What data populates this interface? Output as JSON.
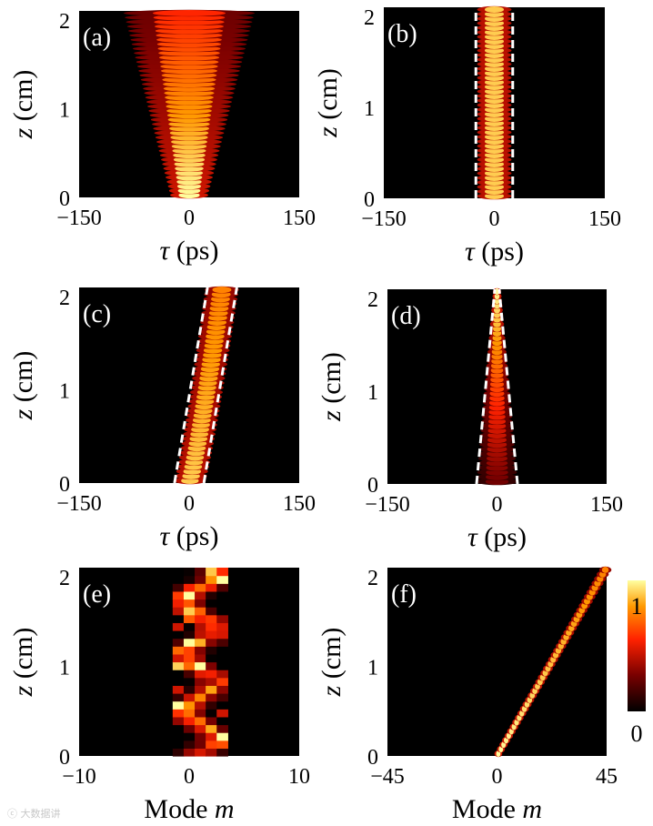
{
  "watermark": "ⓒ 大数据讲",
  "colorbar": {
    "ticks": [
      "1",
      "0"
    ],
    "colormap": [
      "#000000",
      "#7a0000",
      "#ff2200",
      "#ff9900",
      "#ffffa0"
    ]
  },
  "chart_data": [
    {
      "panel": "(a)",
      "type": "heatmap",
      "pattern": "broadening beam",
      "xlabel": "τ (ps)",
      "ylabel": "z (cm)",
      "xlim": [
        -150,
        150
      ],
      "ylim": [
        0,
        2.1
      ],
      "xticks": [
        -150,
        0,
        150
      ],
      "xticklabels": [
        "−150",
        "0",
        "150"
      ],
      "yticks": [
        0,
        1,
        2
      ],
      "yticklabels": [
        "0",
        "1",
        "2"
      ],
      "beam": {
        "center_start": 0,
        "center_end": 0,
        "width_start": 14,
        "width_end": 50,
        "peak_start": 1.0,
        "peak_end": 0.55
      }
    },
    {
      "panel": "(b)",
      "type": "heatmap",
      "pattern": "stationary soliton",
      "xlabel": "τ (ps)",
      "ylabel": "z (cm)",
      "xlim": [
        -150,
        150
      ],
      "ylim": [
        0,
        2.1
      ],
      "xticks": [
        -150,
        0,
        150
      ],
      "xticklabels": [
        "−150",
        "0",
        "150"
      ],
      "yticks": [
        0,
        1,
        2
      ],
      "yticklabels": [
        "0",
        "1",
        "2"
      ],
      "beam": {
        "center_start": 0,
        "center_end": 0,
        "width_start": 13,
        "width_end": 13,
        "peak_start": 0.9,
        "peak_end": 0.9
      },
      "dashed_lines": [
        {
          "x": [
            -25,
            -25
          ],
          "z": [
            0,
            2.1
          ]
        },
        {
          "x": [
            25,
            25
          ],
          "z": [
            0,
            2.1
          ]
        }
      ]
    },
    {
      "panel": "(c)",
      "type": "heatmap",
      "pattern": "drifting soliton",
      "xlabel": "τ (ps)",
      "ylabel": "z (cm)",
      "xlim": [
        -150,
        150
      ],
      "ylim": [
        0,
        2.1
      ],
      "xticks": [
        -150,
        0,
        150
      ],
      "xticklabels": [
        "−150",
        "0",
        "150"
      ],
      "yticks": [
        0,
        1,
        2
      ],
      "yticklabels": [
        "0",
        "1",
        "2"
      ],
      "beam": {
        "center_start": 0,
        "center_end": 45,
        "width_start": 12,
        "width_end": 13,
        "peak_start": 0.9,
        "peak_end": 0.75,
        "curve": 0.85
      },
      "dashed_lines": [
        {
          "x": [
            -20,
            25
          ],
          "z": [
            0,
            2.1
          ]
        },
        {
          "x": [
            20,
            65
          ],
          "z": [
            0,
            2.1
          ]
        }
      ]
    },
    {
      "panel": "(d)",
      "type": "heatmap",
      "pattern": "focusing beam",
      "xlabel": "τ (ps)",
      "ylabel": "z (cm)",
      "xlim": [
        -150,
        150
      ],
      "ylim": [
        0,
        2.1
      ],
      "xticks": [
        -150,
        0,
        150
      ],
      "xticklabels": [
        "−150",
        "0",
        "150"
      ],
      "yticks": [
        0,
        1,
        2
      ],
      "yticklabels": [
        "0",
        "1",
        "2"
      ],
      "beam": {
        "center_start": 0,
        "center_end": 0,
        "width_start": 16,
        "width_end": 3,
        "peak_start": 0.25,
        "peak_end": 1.0
      },
      "dashed_lines": [
        {
          "x": [
            -28,
            -3
          ],
          "z": [
            0,
            2.1
          ]
        },
        {
          "x": [
            28,
            3
          ],
          "z": [
            0,
            2.1
          ]
        }
      ]
    },
    {
      "panel": "(e)",
      "type": "heatmap",
      "pattern": "oscillating modes",
      "xlabel": "Mode m",
      "ylabel": "z (cm)",
      "xlim": [
        -10,
        10
      ],
      "ylim": [
        0,
        2.1
      ],
      "xticks": [
        -10,
        0,
        10
      ],
      "xticklabels": [
        "−10",
        "0",
        "10"
      ],
      "yticks": [
        0,
        1,
        2
      ],
      "yticklabels": [
        "0",
        "1",
        "2"
      ],
      "modes": [
        -1,
        0,
        1,
        2,
        3
      ],
      "rows": 24
    },
    {
      "panel": "(f)",
      "type": "heatmap",
      "pattern": "ramping mode",
      "xlabel": "Mode m",
      "ylabel": "z (cm)",
      "xlim": [
        -45,
        45
      ],
      "ylim": [
        0,
        2.1
      ],
      "xticks": [
        -45,
        0,
        45
      ],
      "xticklabels": [
        "−45",
        "0",
        "45"
      ],
      "yticks": [
        0,
        1,
        2
      ],
      "yticklabels": [
        "0",
        "1",
        "2"
      ],
      "beam": {
        "center_start": 0,
        "center_end": 45,
        "width_start": 0.9,
        "width_end": 1.4,
        "peak_start": 1.0,
        "peak_end": 0.75
      }
    }
  ]
}
